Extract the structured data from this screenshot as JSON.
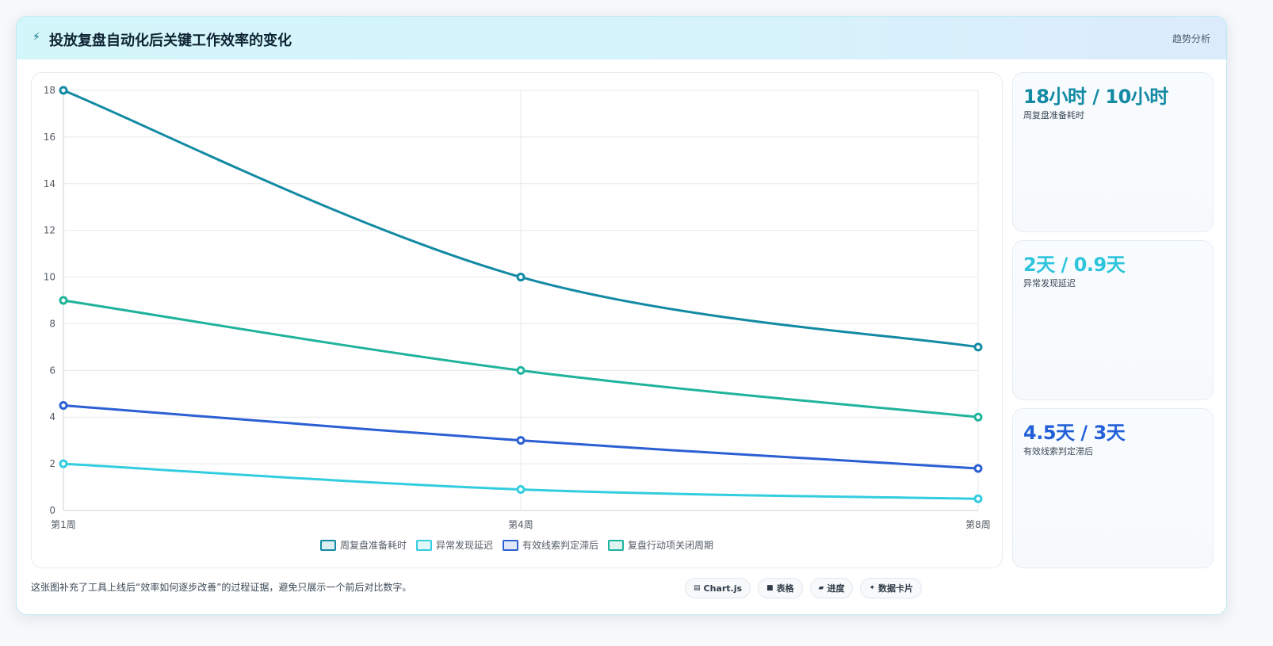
{
  "header": {
    "icon": "lightning-icon",
    "title": "投放复盘自动化后关键工作效率的变化",
    "tag": "趋势分析"
  },
  "chart_data": {
    "type": "line",
    "x": [
      "第1周",
      "第4周",
      "第8周"
    ],
    "ylim": [
      0,
      18
    ],
    "yticks": [
      "0",
      "2",
      "4",
      "6",
      "8",
      "10",
      "12",
      "14",
      "16",
      "18"
    ],
    "grid": true,
    "legend_position": "bottom",
    "series": [
      {
        "name": "周复盘准备耗时",
        "values": [
          18,
          10,
          7
        ],
        "color": "#138aa3"
      },
      {
        "name": "异常发现延迟",
        "values": [
          2,
          0.9,
          0.5
        ],
        "color": "#33cde0"
      },
      {
        "name": "有效线索判定滞后",
        "values": [
          4.5,
          3,
          1.8
        ],
        "color": "#2b5fd3"
      },
      {
        "name": "复盘行动项关闭周期",
        "values": [
          9,
          6,
          4
        ],
        "color": "#1fb39c"
      }
    ]
  },
  "stats": [
    {
      "value": "18小时 / 10小时",
      "label": "周复盘准备耗时",
      "color": "#138aa3"
    },
    {
      "value": "2天 / 0.9天",
      "label": "异常发现延迟",
      "color": "#2ec4db"
    },
    {
      "value": "4.5天 / 3天",
      "label": "有效线索判定滞后",
      "color": "#2360d8"
    }
  ],
  "footer": {
    "note": "这张图补充了工具上线后“效率如何逐步改善”的过程证据，避免只展示一个前后对比数字。",
    "pills": [
      {
        "icon": "chart-icon",
        "glyph": "▤",
        "label": "Chart.js"
      },
      {
        "icon": "table-icon",
        "glyph": "■",
        "label": "表格"
      },
      {
        "icon": "progress-icon",
        "glyph": "▰",
        "label": "进度"
      },
      {
        "icon": "card-icon",
        "glyph": "✦",
        "label": "数据卡片"
      }
    ]
  }
}
